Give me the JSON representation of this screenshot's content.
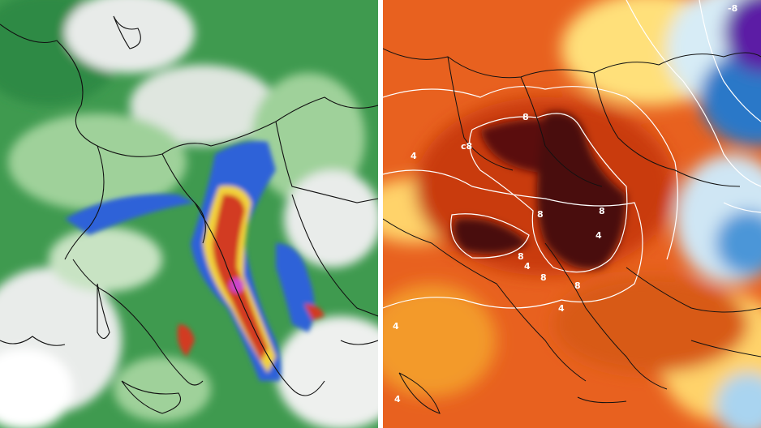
{
  "panels": [
    {
      "name": "precipitation-map",
      "colors": {
        "base": "#3f9a4f",
        "light": "#9fd19a",
        "dry": "#e9ecea",
        "wet_mid": "#2f62d8",
        "wet_high": "#d23a22",
        "wet_peak": "#cc44cc"
      }
    },
    {
      "name": "temperature-anomaly-map",
      "colors": {
        "hot": "#c93a10",
        "very_hot": "#4a0a0a",
        "warm": "#f39a2a",
        "mild": "#ffe07a",
        "cool": "#d7ecf6",
        "cold": "#2a78c8",
        "very_cold": "#5b1fa5"
      },
      "contour_labels": {
        "top_right": "-8",
        "c1": "8",
        "c2": "c8",
        "c3": "4",
        "c4": "8",
        "c5": "8",
        "c6": "4",
        "c7": "8",
        "c8": "4",
        "c9": "8",
        "c10": "8",
        "c11": "4",
        "c12": "4",
        "c13": "4"
      }
    }
  ]
}
